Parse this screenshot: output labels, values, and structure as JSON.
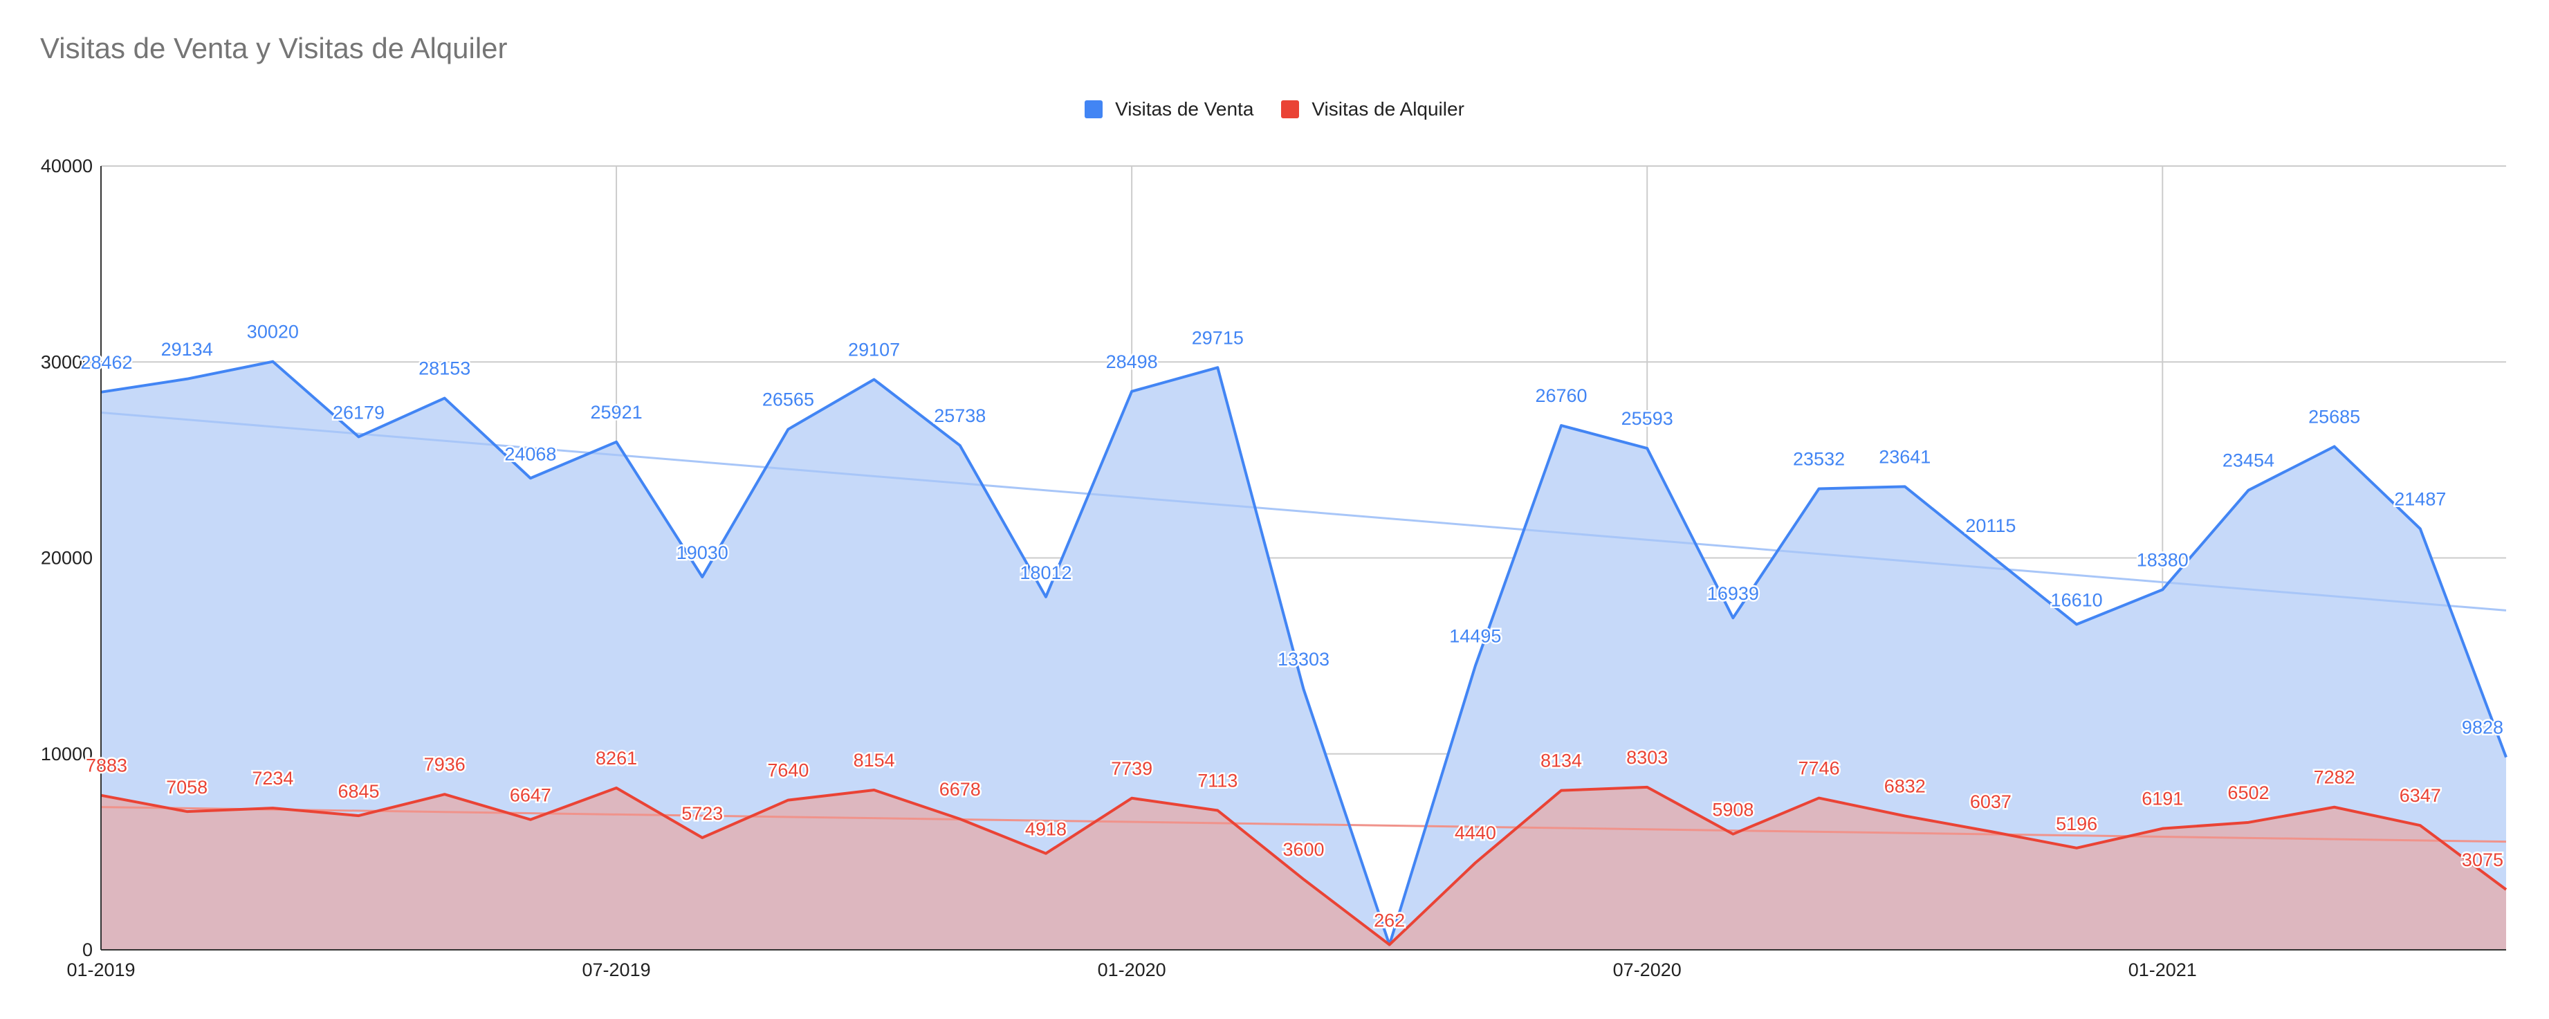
{
  "chart_data": {
    "type": "area",
    "title": "Visitas de Venta y Visitas de Alquiler",
    "xlabel": "",
    "ylabel": "",
    "ylim": [
      0,
      40000
    ],
    "yticks": [
      0,
      10000,
      20000,
      30000,
      40000
    ],
    "xtick_labels": [
      "01-2019",
      "07-2019",
      "01-2020",
      "07-2020",
      "01-2021"
    ],
    "legend_position": "top",
    "grid": true,
    "categories": [
      "01-2019",
      "02-2019",
      "03-2019",
      "04-2019",
      "05-2019",
      "06-2019",
      "07-2019",
      "08-2019",
      "09-2019",
      "10-2019",
      "11-2019",
      "12-2019",
      "01-2020",
      "02-2020",
      "03-2020",
      "04-2020",
      "05-2020",
      "06-2020",
      "07-2020",
      "08-2020",
      "09-2020",
      "10-2020",
      "11-2020",
      "12-2020",
      "01-2021",
      "02-2021",
      "03-2021",
      "04-2021",
      "05-2021"
    ],
    "series": [
      {
        "name": "Visitas de Venta",
        "color": "#4285f4",
        "fill": "#c6d9f9",
        "trend_color": "#a8c6f8",
        "values": [
          28462,
          29134,
          30020,
          26179,
          28153,
          24068,
          25921,
          19030,
          26565,
          29107,
          25738,
          18012,
          28498,
          29715,
          13303,
          262,
          14495,
          26760,
          25593,
          16939,
          23532,
          23641,
          20115,
          16610,
          18380,
          23454,
          25685,
          21487,
          9828
        ],
        "labels": [
          "28462",
          "29134",
          "30020",
          "26179",
          "28153",
          "24068",
          "25921",
          "19030",
          "26565",
          "29107",
          "25738",
          "18012",
          "28498",
          "29715",
          "13303",
          "",
          "14495",
          "26760",
          "25593",
          "16939",
          "23532",
          "23641",
          "20115",
          "16610",
          "18380",
          "23454",
          "25685",
          "21487",
          "9828"
        ]
      },
      {
        "name": "Visitas de Alquiler",
        "color": "#ea4335",
        "fill": "#e6a9a8",
        "trend_color": "#f0938b",
        "values": [
          7883,
          7058,
          7234,
          6845,
          7936,
          6647,
          8261,
          5723,
          7640,
          8154,
          6678,
          4918,
          7739,
          7113,
          3600,
          262,
          4440,
          8134,
          8303,
          5908,
          7746,
          6832,
          6037,
          5196,
          6191,
          6502,
          7282,
          6347,
          3075
        ],
        "labels": [
          "7883",
          "7058",
          "7234",
          "6845",
          "7936",
          "6647",
          "8261",
          "5723",
          "7640",
          "8154",
          "6678",
          "4918",
          "7739",
          "7113",
          "3600",
          "262",
          "4440",
          "8134",
          "8303",
          "5908",
          "7746",
          "6832",
          "6037",
          "5196",
          "6191",
          "6502",
          "7282",
          "6347",
          "3075"
        ]
      }
    ]
  }
}
